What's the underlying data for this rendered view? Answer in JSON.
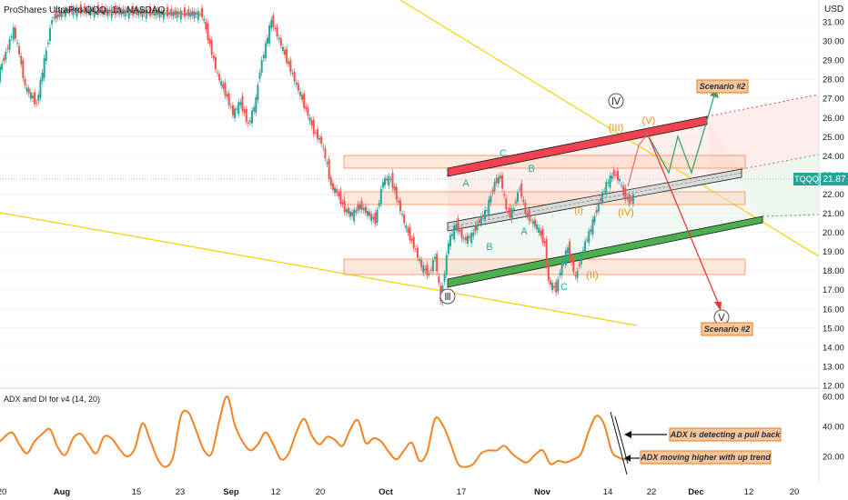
{
  "header": {
    "symbol_title": "ProShares UltraPro QQQ, 1h, NASDAQ",
    "currency": "USD"
  },
  "price_tag": {
    "symbol": "TQQQ",
    "value": "21.87"
  },
  "colors": {
    "up_candle": "#26a69a",
    "down_candle": "#ef5350",
    "resistance_channel": "#f0424f",
    "support_channel": "#4caf50",
    "mid_channel": "#9e9e9e",
    "wedge_line": "#f5d300",
    "zone_fill": "#fbd5bf",
    "zone_border": "#f08c5a",
    "adx_line": "#f58220",
    "scenario_up": "#3aa36c",
    "scenario_down": "#e53935",
    "wave_orange": "#f08c1c",
    "wave_teal": "#26a69a"
  },
  "chart_data": [
    {
      "type": "line",
      "title": "ProShares UltraPro QQQ, 1h, NASDAQ",
      "xlabel": "",
      "ylabel": "USD",
      "x_ticks": [
        "20",
        "Aug",
        "15",
        "23",
        "Sep",
        "12",
        "20",
        "Oct",
        "17",
        "Nov",
        "14",
        "22",
        "Dec",
        "12",
        "20"
      ],
      "y_ticks": [
        "12.00",
        "13.00",
        "14.00",
        "15.00",
        "16.00",
        "17.00",
        "18.00",
        "19.00",
        "20.00",
        "21.00",
        "22.00",
        "23.00",
        "24.00",
        "25.00",
        "26.00",
        "27.00",
        "28.00",
        "29.00",
        "30.00",
        "31.00"
      ],
      "ylim": [
        11.5,
        31.6
      ],
      "series": [
        {
          "values": [
            [
              0,
              28.2
            ],
            [
              2,
              29.4
            ],
            [
              4,
              30.6
            ],
            [
              5.5,
              29.3
            ],
            [
              7,
              27.6
            ],
            [
              9,
              27.0
            ],
            [
              10,
              26.7
            ],
            [
              14,
              31.2
            ],
            [
              18,
              31.6
            ],
            [
              53,
              31.4
            ],
            [
              55,
              29.8
            ],
            [
              57,
              28.2
            ],
            [
              59,
              27.3
            ],
            [
              61,
              26.2
            ],
            [
              63,
              26.8
            ],
            [
              65,
              25.6
            ],
            [
              67,
              26.9
            ],
            [
              68,
              28.5
            ],
            [
              70,
              30.2
            ],
            [
              71,
              31.1
            ],
            [
              80,
              26.4
            ],
            [
              82,
              25.3
            ],
            [
              84,
              24.7
            ],
            [
              85.5,
              23.5
            ],
            [
              86.5,
              22.4
            ],
            [
              88,
              22.1
            ],
            [
              90,
              21.2
            ],
            [
              92,
              20.9
            ],
            [
              94,
              21.4
            ],
            [
              96,
              21.0
            ],
            [
              98,
              20.6
            ],
            [
              100,
              22.7
            ],
            [
              102,
              22.8
            ],
            [
              104,
              21.5
            ],
            [
              106,
              20.2
            ],
            [
              108,
              19.3
            ],
            [
              110,
              18.2
            ],
            [
              112,
              17.8
            ],
            [
              113.5,
              18.8
            ],
            [
              115,
              16.4
            ],
            [
              117,
              19.5
            ],
            [
              119,
              20.4
            ],
            [
              121,
              19.6
            ],
            [
              123,
              19.8
            ],
            [
              125,
              20.6
            ],
            [
              127,
              21.2
            ],
            [
              129,
              22.6
            ],
            [
              130.5,
              22.9
            ],
            [
              132,
              21.2
            ],
            [
              133,
              20.9
            ],
            [
              134,
              21.3
            ],
            [
              135.5,
              22.4
            ],
            [
              137,
              21.0
            ],
            [
              138.5,
              20.6
            ],
            [
              140,
              20.3
            ],
            [
              142,
              19.4
            ],
            [
              143,
              17.4
            ],
            [
              145,
              17.0
            ],
            [
              146,
              18.0
            ],
            [
              148,
              19.2
            ],
            [
              149,
              18.4
            ],
            [
              150,
              17.6
            ],
            [
              152,
              19.2
            ],
            [
              154,
              20.2
            ],
            [
              156,
              21.5
            ],
            [
              158,
              22.5
            ],
            [
              160,
              23.1
            ],
            [
              161.5,
              22.7
            ],
            [
              162.5,
              22.0
            ],
            [
              164,
              21.6
            ],
            [
              165,
              21.87
            ]
          ]
        }
      ]
    },
    {
      "type": "line",
      "title": "ADX and DI for v4 (14, 20)",
      "xlabel": "",
      "ylabel": "",
      "y_ticks": [
        "20.00",
        "40.00",
        "60.00"
      ],
      "ylim": [
        10,
        62
      ],
      "series": [
        {
          "values": [
            [
              0,
              30
            ],
            [
              3,
              36
            ],
            [
              5,
              28
            ],
            [
              7,
              22
            ],
            [
              9,
              30
            ],
            [
              11,
              35
            ],
            [
              13,
              38
            ],
            [
              15,
              26
            ],
            [
              17,
              21
            ],
            [
              19,
              32
            ],
            [
              21,
              35
            ],
            [
              23,
              28
            ],
            [
              25,
              22
            ],
            [
              27,
              33
            ],
            [
              29,
              32
            ],
            [
              31,
              25
            ],
            [
              33,
              20
            ],
            [
              35,
              25
            ],
            [
              37,
              42
            ],
            [
              39,
              31
            ],
            [
              41,
              18
            ],
            [
              43,
              13
            ],
            [
              45,
              20
            ],
            [
              47,
              47
            ],
            [
              49,
              49
            ],
            [
              51,
              37
            ],
            [
              53,
              24
            ],
            [
              55,
              22
            ],
            [
              57,
              44
            ],
            [
              59,
              60
            ],
            [
              61,
              41
            ],
            [
              63,
              30
            ],
            [
              65,
              24
            ],
            [
              67,
              28
            ],
            [
              69,
              36
            ],
            [
              71,
              28
            ],
            [
              73,
              18
            ],
            [
              75,
              22
            ],
            [
              77,
              36
            ],
            [
              79,
              45
            ],
            [
              81,
              34
            ],
            [
              83,
              28
            ],
            [
              85,
              33
            ],
            [
              87,
              31
            ],
            [
              89,
              27
            ],
            [
              91,
              38
            ],
            [
              93,
              44
            ],
            [
              95,
              29
            ],
            [
              97,
              32
            ],
            [
              99,
              30
            ],
            [
              101,
              23
            ],
            [
              103,
              18
            ],
            [
              105,
              24
            ],
            [
              107,
              29
            ],
            [
              109,
              17
            ],
            [
              111,
              23
            ],
            [
              113,
              45
            ],
            [
              115,
              41
            ],
            [
              117,
              29
            ],
            [
              119,
              15
            ],
            [
              121,
              13
            ],
            [
              123,
              15
            ],
            [
              125,
              22
            ],
            [
              127,
              24
            ],
            [
              129,
              24
            ],
            [
              131,
              27
            ],
            [
              133,
              22
            ],
            [
              135,
              18
            ],
            [
              137,
              16
            ],
            [
              139,
              21
            ],
            [
              141,
              24
            ],
            [
              143,
              15
            ],
            [
              145,
              17
            ],
            [
              147,
              16
            ],
            [
              149,
              18
            ],
            [
              151,
              22
            ],
            [
              153,
              37
            ],
            [
              155,
              47
            ],
            [
              157,
              41
            ],
            [
              159,
              23
            ],
            [
              161,
              19
            ],
            [
              162,
              18
            ],
            [
              163,
              18.5
            ]
          ]
        }
      ]
    }
  ],
  "x_axis_labels": [
    "20",
    "Aug",
    "15",
    "23",
    "Sep",
    "12",
    "20",
    "Oct",
    "17",
    "Nov",
    "14",
    "22",
    "Dec",
    "12",
    "20"
  ],
  "price_axis_labels": [
    "31.00",
    "30.00",
    "29.00",
    "28.00",
    "27.00",
    "26.00",
    "25.00",
    "24.00",
    "23.00",
    "22.00",
    "21.00",
    "20.00",
    "19.00",
    "18.00",
    "17.00",
    "16.00",
    "15.00",
    "14.00",
    "13.00",
    "12.00"
  ],
  "adx_axis_labels": [
    "60.00",
    "40.00",
    "20.00"
  ],
  "adx_panel": {
    "title": "ADX and DI for v4 (14, 20)"
  },
  "wave_labels": {
    "circled": [
      "Ⅳ",
      "Ⅲ",
      "Ⅴ"
    ],
    "orange": [
      "(III)",
      "(V)",
      "(IV)",
      "(II)",
      "(I)"
    ],
    "teal": [
      "A",
      "B",
      "C",
      "A",
      "B",
      "C"
    ]
  },
  "scenario_labels": {
    "up": "Scenario #2",
    "down": "Scenario #2"
  },
  "adx_notes": {
    "pull_back": "ADX is detecting a pull back",
    "higher": "ADX moving higher with up trend"
  }
}
